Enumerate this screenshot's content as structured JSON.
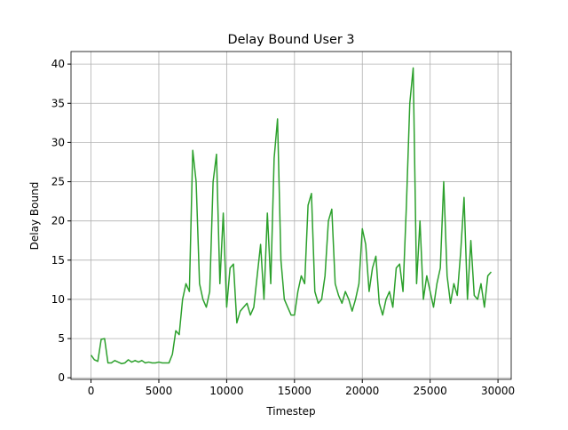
{
  "chart_data": {
    "type": "line",
    "title": "Delay Bound User 3",
    "xlabel": "Timestep",
    "ylabel": "Delay Bound",
    "x": [
      0,
      250,
      500,
      750,
      1000,
      1250,
      1500,
      1750,
      2000,
      2250,
      2500,
      2750,
      3000,
      3250,
      3500,
      3750,
      4000,
      4250,
      4500,
      4750,
      5000,
      5250,
      5500,
      5750,
      6000,
      6250,
      6500,
      6750,
      7000,
      7250,
      7500,
      7750,
      8000,
      8250,
      8500,
      8750,
      9000,
      9250,
      9500,
      9750,
      10000,
      10250,
      10500,
      10750,
      11000,
      11250,
      11500,
      11750,
      12000,
      12250,
      12500,
      12750,
      13000,
      13250,
      13500,
      13750,
      14000,
      14250,
      14500,
      14750,
      15000,
      15250,
      15500,
      15750,
      16000,
      16250,
      16500,
      16750,
      17000,
      17250,
      17500,
      17750,
      18000,
      18250,
      18500,
      18750,
      19000,
      19250,
      19500,
      19750,
      20000,
      20250,
      20500,
      20750,
      21000,
      21250,
      21500,
      21750,
      22000,
      22250,
      22500,
      22750,
      23000,
      23250,
      23500,
      23750,
      24000,
      24250,
      24500,
      24750,
      25000,
      25250,
      25500,
      25750,
      26000,
      26250,
      26500,
      26750,
      27000,
      27250,
      27500,
      27750,
      28000,
      28250,
      28500,
      28750,
      29000,
      29250,
      29500
    ],
    "series": [
      {
        "name": "User 3",
        "color": "#2ca02c",
        "values": [
          2.9,
          2.3,
          2.1,
          4.9,
          5.0,
          1.9,
          1.9,
          2.2,
          2.0,
          1.8,
          1.9,
          2.3,
          2.0,
          2.2,
          2.0,
          2.2,
          1.9,
          2.0,
          1.9,
          1.9,
          2.0,
          1.9,
          1.9,
          1.9,
          3.0,
          6.0,
          5.5,
          10.0,
          12.0,
          11.0,
          29.0,
          25.0,
          12.0,
          10.0,
          9.0,
          11.0,
          25.0,
          28.5,
          12.0,
          21.0,
          9.0,
          14.0,
          14.5,
          7.0,
          8.5,
          9.0,
          9.5,
          8.0,
          9.0,
          13.0,
          17.0,
          10.0,
          21.0,
          12.0,
          28.0,
          33.0,
          15.0,
          10.0,
          9.0,
          8.0,
          8.0,
          11.0,
          13.0,
          12.0,
          22.0,
          23.5,
          11.0,
          9.5,
          10.0,
          13.0,
          20.0,
          21.5,
          12.0,
          10.5,
          9.5,
          11.0,
          10.0,
          8.5,
          10.0,
          12.0,
          19.0,
          17.0,
          11.0,
          14.0,
          15.5,
          9.5,
          8.0,
          10.0,
          11.0,
          9.0,
          14.0,
          14.5,
          11.0,
          22.0,
          35.0,
          39.5,
          12.0,
          20.0,
          10.0,
          13.0,
          11.0,
          9.0,
          12.0,
          14.0,
          25.0,
          13.0,
          9.5,
          12.0,
          10.5,
          16.0,
          23.0,
          10.0,
          17.5,
          10.5,
          10.0,
          12.0,
          9.0,
          13.0,
          13.5
        ]
      }
    ],
    "xlim": [
      -1475,
      30975
    ],
    "ylim": [
      -0.2,
      41.6
    ],
    "xticks": [
      0,
      5000,
      10000,
      15000,
      20000,
      25000,
      30000
    ],
    "yticks": [
      0,
      5,
      10,
      15,
      20,
      25,
      30,
      35,
      40
    ],
    "grid": true
  }
}
